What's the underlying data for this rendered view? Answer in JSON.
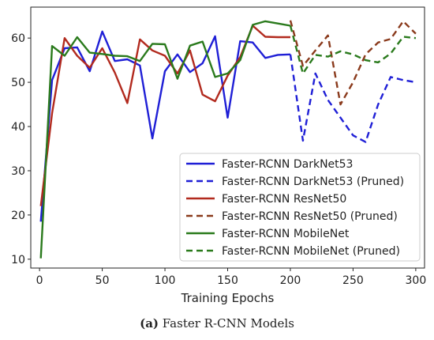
{
  "chart_data": {
    "type": "line",
    "title": "",
    "xlabel": "Training Epochs",
    "ylabel": "",
    "xlim": [
      -7,
      307
    ],
    "ylim": [
      8,
      67
    ],
    "xticks": [
      0,
      50,
      100,
      150,
      200,
      250,
      300
    ],
    "yticks": [
      10,
      20,
      30,
      40,
      50,
      60
    ],
    "grid": false,
    "legend_position": "lower-right",
    "series": [
      {
        "name": "Faster-RCNN DarkNet53",
        "color": "#1f1fd6",
        "style": "solid",
        "x": [
          1,
          10,
          20,
          30,
          40,
          50,
          60,
          70,
          80,
          90,
          100,
          110,
          120,
          130,
          140,
          150,
          160,
          170,
          180,
          190,
          200
        ],
        "y": [
          18.5,
          50.5,
          57.7,
          57.9,
          52.5,
          61.5,
          54.8,
          55.2,
          53.8,
          37.3,
          52.5,
          56.3,
          52.3,
          54.3,
          60.4,
          42.0,
          59.3,
          59.0,
          55.5,
          56.2,
          56.3
        ]
      },
      {
        "name": "Faster-RCNN DarkNet53 (Pruned)",
        "color": "#1f1fd6",
        "style": "dashed",
        "x": [
          200,
          210,
          220,
          230,
          240,
          250,
          260,
          270,
          280,
          290,
          300
        ],
        "y": [
          56.3,
          36.8,
          52.0,
          46.0,
          42.0,
          38.0,
          36.5,
          45.0,
          51.2,
          50.5,
          50.0
        ]
      },
      {
        "name": "Faster-RCNN ResNet50",
        "color": "#b22a1e",
        "style": "solid",
        "x": [
          1,
          10,
          20,
          30,
          40,
          50,
          60,
          70,
          80,
          90,
          100,
          110,
          120,
          130,
          140,
          150,
          160,
          170,
          180,
          190,
          200
        ],
        "y": [
          22.0,
          43.0,
          60.0,
          56.0,
          53.3,
          57.7,
          52.2,
          45.3,
          59.7,
          57.2,
          56.0,
          52.0,
          57.2,
          47.2,
          45.7,
          51.5,
          55.7,
          62.8,
          60.3,
          60.2,
          60.2
        ]
      },
      {
        "name": "Faster-RCNN ResNet50 (Pruned)",
        "color": "#8a3a1c",
        "style": "dashed",
        "x": [
          200,
          210,
          220,
          230,
          240,
          250,
          260,
          270,
          280,
          290,
          300
        ],
        "y": [
          64.0,
          53.7,
          57.2,
          60.6,
          45.0,
          50.0,
          56.3,
          59.0,
          59.8,
          63.8,
          61.0
        ]
      },
      {
        "name": "Faster-RCNN MobileNet",
        "color": "#2a7a1c",
        "style": "solid",
        "x": [
          1,
          10,
          20,
          30,
          40,
          50,
          60,
          70,
          80,
          90,
          100,
          110,
          120,
          130,
          140,
          150,
          160,
          170,
          180,
          190,
          200
        ],
        "y": [
          10.2,
          58.2,
          56.0,
          60.2,
          56.7,
          56.4,
          56.0,
          55.9,
          54.8,
          58.7,
          58.6,
          50.8,
          58.3,
          59.2,
          51.2,
          52.0,
          55.0,
          63.0,
          63.8,
          63.3,
          62.8
        ]
      },
      {
        "name": "Faster-RCNN MobileNet (Pruned)",
        "color": "#2a7a1c",
        "style": "dashed",
        "x": [
          200,
          210,
          220,
          230,
          240,
          250,
          260,
          270,
          280,
          290,
          300
        ],
        "y": [
          62.8,
          52.0,
          56.2,
          55.8,
          57.0,
          56.3,
          55.0,
          54.5,
          56.5,
          60.3,
          60.0
        ]
      }
    ]
  },
  "caption": {
    "label": "(a)",
    "text": "Faster R-CNN Models"
  }
}
